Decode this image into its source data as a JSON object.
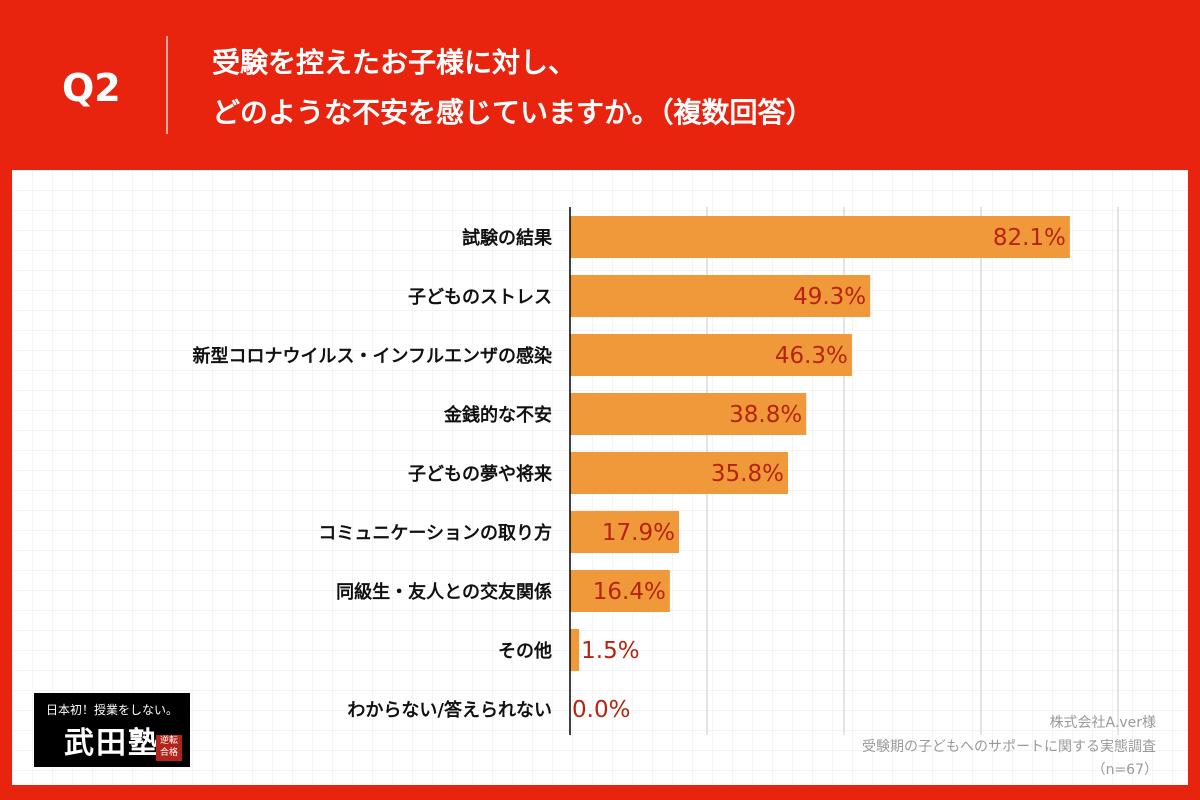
{
  "header": {
    "q_label": "Q2",
    "title_line1": "受験を控えたお子様に対し、",
    "title_line2": "どのような不安を感じていますか。（複数回答）"
  },
  "colors": {
    "frame": "#E8240F",
    "bar": "#F0993A",
    "value_label": "#B52410"
  },
  "chart_data": {
    "type": "bar",
    "orientation": "horizontal",
    "categories": [
      "試験の結果",
      "子どものストレス",
      "新型コロナウイルス・インフルエンザの感染",
      "金銭的な不安",
      "子どもの夢や将来",
      "コミュニケーションの取り方",
      "同級生・友人との交友関係",
      "その他",
      "わからない/答えられない"
    ],
    "values": [
      82.1,
      49.3,
      46.3,
      38.8,
      35.8,
      17.9,
      16.4,
      1.5,
      0.0
    ],
    "value_labels": [
      "82.1%",
      "49.3%",
      "46.3%",
      "38.8%",
      "35.8%",
      "17.9%",
      "16.4%",
      "1.5%",
      "0.0%"
    ],
    "unit": "%",
    "xlim": [
      0,
      90
    ],
    "grid": true
  },
  "source": {
    "line1": "株式会社A.ver様",
    "line2": "受験期の子どもへのサポートに関する実態調査",
    "line3": "（n=67）"
  },
  "logo": {
    "tagline": "日本初！授業をしない。",
    "name": "武田塾",
    "badge": "逆転合格"
  }
}
